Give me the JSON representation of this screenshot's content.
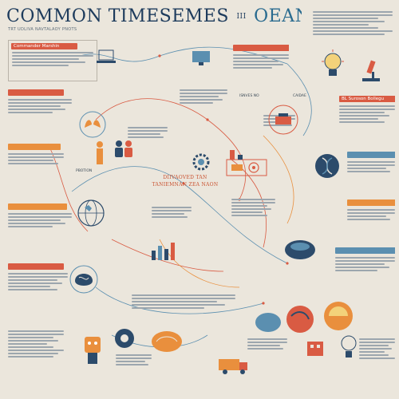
{
  "header": {
    "title_part1": "COMMON TIMESEMES",
    "title_separator": "III",
    "title_part2": "OEAN INVATOR",
    "subtitle": "TRT UDLIVA NAVTALAOY PNOTS"
  },
  "center": {
    "line1": "DIIVAOVED TAN",
    "line2": "TANIEMNAN ZEA NAON"
  },
  "blocks": {
    "b1": "Commander Marshin",
    "b2": "",
    "b3": "",
    "b4": "",
    "b5": "BL Suroson Bollegu",
    "b6": "",
    "b7": "",
    "b8": "",
    "b9": "",
    "b10": ""
  },
  "labels": {
    "l1": "ISNVES NO",
    "l2": "CAIDAE",
    "l3": "PBOTION"
  },
  "colors": {
    "navy": "#1d3b5c",
    "red": "#d95b43",
    "orange": "#e98f3d",
    "blue": "#5b8fb0",
    "background": "#ebe6dc"
  },
  "icons": [
    "lightbulb-icon",
    "microscope-icon",
    "dna-icon",
    "gear-icon",
    "factory-icon",
    "people-icon",
    "truck-icon",
    "globe-icon",
    "tools-icon",
    "brain-icon",
    "hands-icon",
    "flask-icon"
  ]
}
